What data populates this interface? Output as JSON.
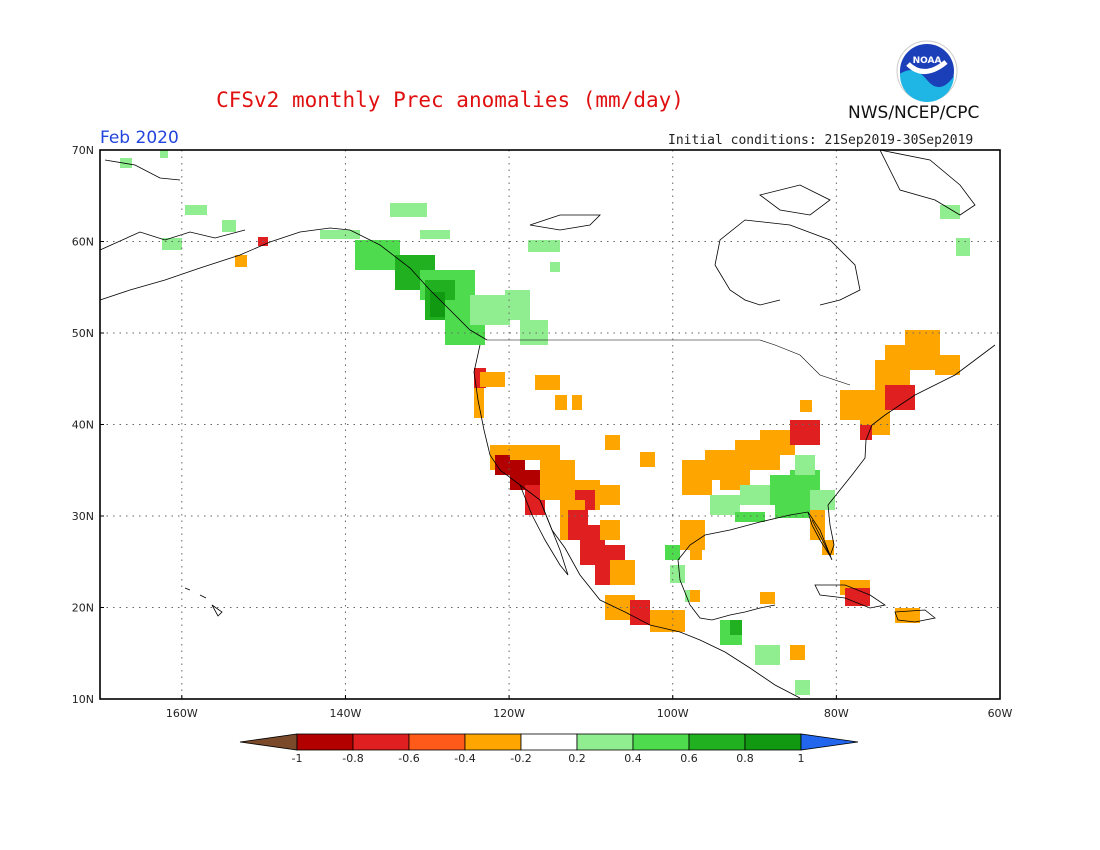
{
  "header": {
    "title": "CFSv2 monthly Prec anomalies (mm/day)",
    "agency": "NWS/NCEP/CPC",
    "period": "Feb 2020",
    "initial_conditions": "Initial conditions: 21Sep2019-30Sep2019"
  },
  "logo": {
    "text": "NOAA",
    "icon": "noaa-logo-icon"
  },
  "axes": {
    "lat_labels": [
      "70N",
      "60N",
      "50N",
      "40N",
      "30N",
      "20N",
      "10N"
    ],
    "lon_labels": [
      "160W",
      "140W",
      "120W",
      "100W",
      "80W",
      "60W"
    ]
  },
  "colorbar": {
    "ticks": [
      "-1",
      "-0.8",
      "-0.6",
      "-0.4",
      "-0.2",
      "0.2",
      "0.4",
      "0.6",
      "0.8",
      "1"
    ],
    "colors": [
      "#7a4a2a",
      "#b20000",
      "#e02020",
      "#ff5a1a",
      "#ffa500",
      "#ffffff",
      "#90ee90",
      "#4edc4e",
      "#20b020",
      "#119911",
      "#2266ee"
    ]
  },
  "map_data": {
    "variable": "Precipitation anomaly",
    "units": "mm/day",
    "extent": {
      "lon_min": -170,
      "lon_max": -60,
      "lat_min": 10,
      "lat_max": 70
    },
    "anomaly_regions": [
      {
        "name": "Pacific Northwest / BC coast",
        "sign": "wet",
        "level": 0.6
      },
      {
        "name": "Southeast Alaska",
        "sign": "wet",
        "level": 0.4
      },
      {
        "name": "Southern California / Baja",
        "sign": "dry",
        "level": -0.8
      },
      {
        "name": "Western Mexico",
        "sign": "dry",
        "level": -0.6
      },
      {
        "name": "Ohio Valley",
        "sign": "dry",
        "level": -0.4
      },
      {
        "name": "New England",
        "sign": "dry",
        "level": -0.6
      },
      {
        "name": "Gulf Coast / Southeast",
        "sign": "wet",
        "level": 0.4
      },
      {
        "name": "Caribbean (Cuba)",
        "sign": "dry",
        "level": -0.6
      },
      {
        "name": "Central America",
        "sign": "wet",
        "level": 0.2
      }
    ]
  }
}
